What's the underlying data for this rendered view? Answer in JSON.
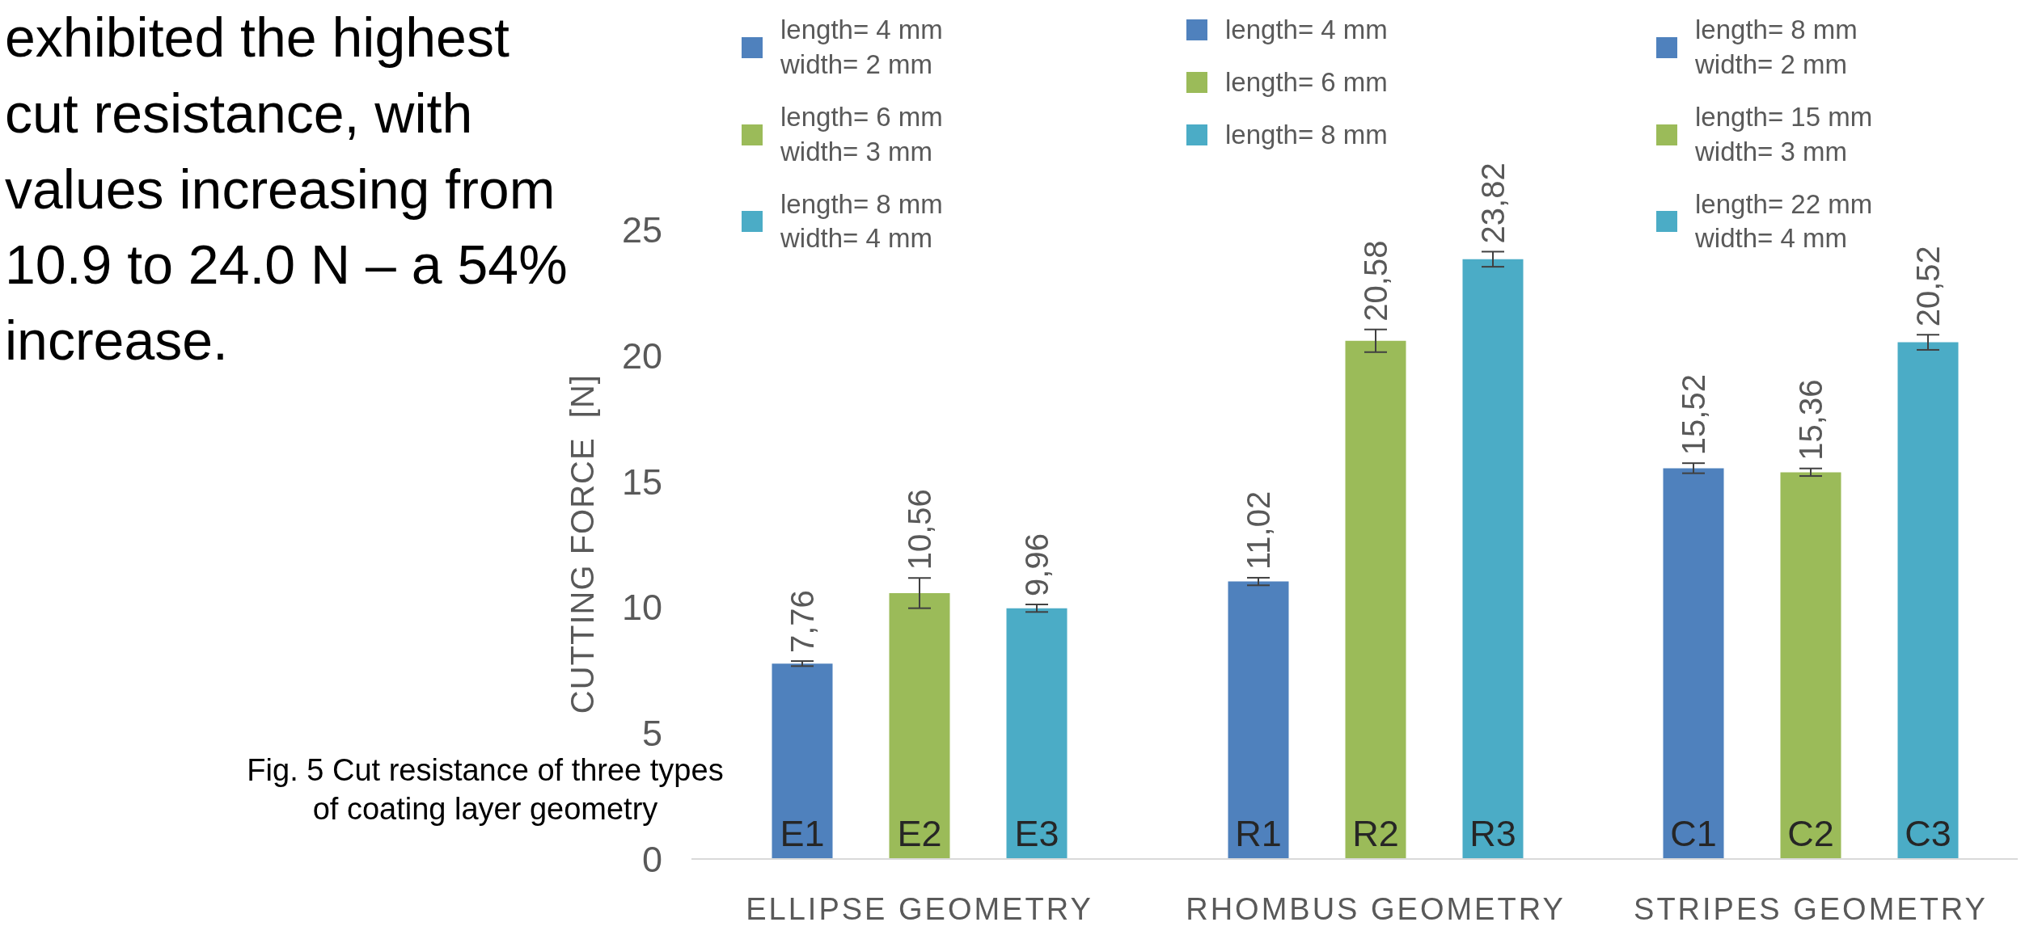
{
  "chart_data": [
    {
      "type": "bar",
      "categories": [
        "E1",
        "E2",
        "E3"
      ],
      "xlabel": "ELLIPSE GEOMETRY",
      "ylabel": "CUTTING FORCE  [N]",
      "ylim": [
        0,
        25
      ],
      "yticks": [
        0,
        5,
        10,
        15,
        20,
        25
      ],
      "legend": "top left",
      "stacked": true,
      "series": [
        {
          "name": "length= 4 mm\nwidth= 2 mm",
          "color": "#4f81bd",
          "values": [
            7.76,
            null,
            null
          ],
          "errors": [
            0.1,
            null,
            null
          ],
          "value_labels": [
            "7,76",
            null,
            null
          ]
        },
        {
          "name": "length= 6 mm\nwidth= 3 mm",
          "color": "#9bbb59",
          "values": [
            null,
            10.56,
            null
          ],
          "errors": [
            null,
            0.6,
            null
          ],
          "value_labels": [
            null,
            "10,56",
            null
          ]
        },
        {
          "name": "length= 8 mm\nwidth= 4 mm",
          "color": "#4bacc6",
          "values": [
            null,
            null,
            9.96
          ],
          "errors": [
            null,
            null,
            0.15
          ],
          "value_labels": [
            null,
            null,
            "9,96"
          ]
        }
      ],
      "annotations": [
        "exhibited the highest cut resistance, with values increasing from 10.9 to 24.0 N – a 54% increase.",
        "Fig. 5 Cut resistance of three types of coating layer geometry"
      ]
    },
    {
      "type": "bar",
      "categories": [
        "R1",
        "R2",
        "R3"
      ],
      "xlabel": "RHOMBUS GEOMETRY",
      "ylim": [
        0,
        25
      ],
      "tick_labels": "x",
      "legend": "top left",
      "stacked": true,
      "series": [
        {
          "name": "length= 4 mm",
          "color": "#4f81bd",
          "values": [
            11.02,
            null,
            null
          ],
          "errors": [
            0.15,
            null,
            null
          ],
          "value_labels": [
            "11,02",
            null,
            null
          ]
        },
        {
          "name": "length= 6 mm",
          "color": "#9bbb59",
          "values": [
            null,
            20.58,
            null
          ],
          "errors": [
            null,
            0.45,
            null
          ],
          "value_labels": [
            null,
            "20,58",
            null
          ]
        },
        {
          "name": "length= 8 mm",
          "color": "#4bacc6",
          "values": [
            null,
            null,
            23.82
          ],
          "errors": [
            null,
            null,
            0.3
          ],
          "value_labels": [
            null,
            null,
            "23,82"
          ]
        }
      ]
    },
    {
      "type": "bar",
      "categories": [
        "C1",
        "C2",
        "C3"
      ],
      "xlabel": "STRIPES GEOMETRY",
      "ylim": [
        0,
        25
      ],
      "tick_labels": "x",
      "legend": "top left",
      "stacked": true,
      "series": [
        {
          "name": "length= 8 mm\nwidth= 2 mm",
          "color": "#4f81bd",
          "values": [
            15.52,
            null,
            null
          ],
          "errors": [
            0.2,
            null,
            null
          ],
          "value_labels": [
            "15,52",
            null,
            null
          ]
        },
        {
          "name": "length= 15 mm\nwidth= 3 mm",
          "color": "#9bbb59",
          "values": [
            null,
            15.36,
            null
          ],
          "errors": [
            null,
            0.15,
            null
          ],
          "value_labels": [
            null,
            "15,36",
            null
          ]
        },
        {
          "name": "length= 22 mm\nwidth= 4 mm",
          "color": "#4bacc6",
          "values": [
            null,
            null,
            20.52
          ],
          "errors": [
            null,
            null,
            0.3
          ],
          "value_labels": [
            null,
            null,
            "20,52"
          ]
        }
      ]
    }
  ]
}
